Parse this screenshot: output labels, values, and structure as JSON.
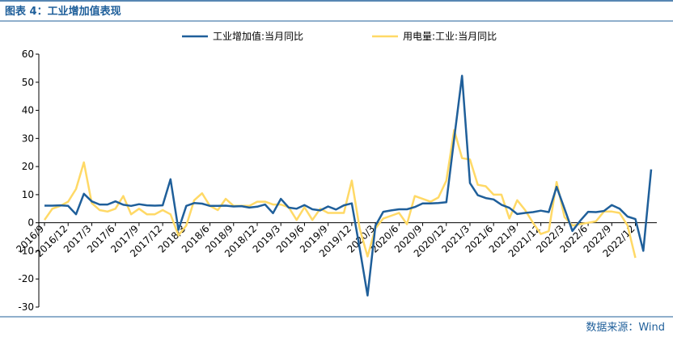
{
  "chart_data": {
    "type": "line",
    "title": "图表 4：工业增加值表现",
    "source": "数据来源：Wind",
    "categories": [
      "2016/9",
      null,
      null,
      "2016/12",
      null,
      null,
      "2017/3",
      null,
      null,
      "2017/6",
      null,
      null,
      "2017/9",
      null,
      null,
      "2017/12",
      null,
      null,
      "2018/3",
      null,
      null,
      "2018/6",
      null,
      null,
      "2018/9",
      null,
      null,
      "2018/12",
      null,
      null,
      "2019/3",
      null,
      null,
      "2019/6",
      null,
      null,
      "2019/9",
      null,
      null,
      "2019/12",
      null,
      null,
      "2020/3",
      null,
      null,
      "2020/6",
      null,
      null,
      "2020/9",
      null,
      null,
      "2020/12",
      null,
      null,
      "2021/3",
      null,
      null,
      "2021/6",
      null,
      null,
      "2021/9",
      null,
      null,
      "2021/12",
      null,
      null,
      "2022/3",
      null,
      null,
      "2022/6",
      null,
      null,
      "2022/9",
      null,
      null,
      "2022/12",
      null,
      null
    ],
    "series": [
      {
        "name": "工业增加值:当月同比",
        "color": "#1f5f9a",
        "values": [
          6.1,
          6.1,
          6.2,
          6.0,
          3,
          10.3,
          7.6,
          6.5,
          6.5,
          7.6,
          6.4,
          6.0,
          6.6,
          6.2,
          6.1,
          6.2,
          15.5,
          -2.5,
          6.0,
          7.0,
          6.8,
          6.0,
          6.0,
          6.1,
          5.8,
          5.9,
          5.4,
          5.7,
          6.5,
          3.4,
          8.5,
          5.4,
          5.0,
          6.3,
          4.8,
          4.4,
          5.8,
          4.7,
          6.2,
          6.9,
          -9,
          -25.9,
          -1.1,
          3.9,
          4.4,
          4.8,
          4.8,
          5.6,
          6.9,
          6.9,
          7.0,
          7.3,
          30,
          52.3,
          14.1,
          9.8,
          8.8,
          8.3,
          6.4,
          5.3,
          3.1,
          3.5,
          3.8,
          4.3,
          3.8,
          12.8,
          5.0,
          -2.9,
          0.7,
          3.9,
          3.8,
          4.2,
          6.3,
          5.0,
          2.2,
          1.3,
          -10,
          19
        ]
      },
      {
        "name": "用电量:工业:当月同比",
        "color": "#ffd966",
        "values": [
          1,
          5,
          6,
          7.5,
          12,
          21.5,
          7,
          4.5,
          4,
          5,
          9.5,
          3,
          5,
          3,
          3,
          4.5,
          3,
          -4.5,
          -1,
          8,
          10.5,
          6,
          4.5,
          8.5,
          6,
          6,
          6,
          7.5,
          7.5,
          6.5,
          6.5,
          5.5,
          1,
          5.5,
          1,
          5,
          3.5,
          3.5,
          3.5,
          15,
          -2,
          -12,
          -2,
          1.5,
          2.5,
          3.5,
          -0.5,
          9.5,
          8.5,
          7.5,
          9,
          15,
          33,
          23,
          22.5,
          13.5,
          13,
          10,
          10,
          1.5,
          8,
          4.5,
          0,
          -4,
          -3,
          14.5,
          2,
          -1,
          -0.5,
          0,
          0.5,
          4,
          4,
          3.5,
          -1,
          -12.5,
          null,
          null
        ]
      }
    ],
    "ylim": [
      -30,
      60
    ],
    "yticks": [
      -30,
      -20,
      -10,
      0,
      10,
      20,
      30,
      40,
      50,
      60
    ]
  }
}
